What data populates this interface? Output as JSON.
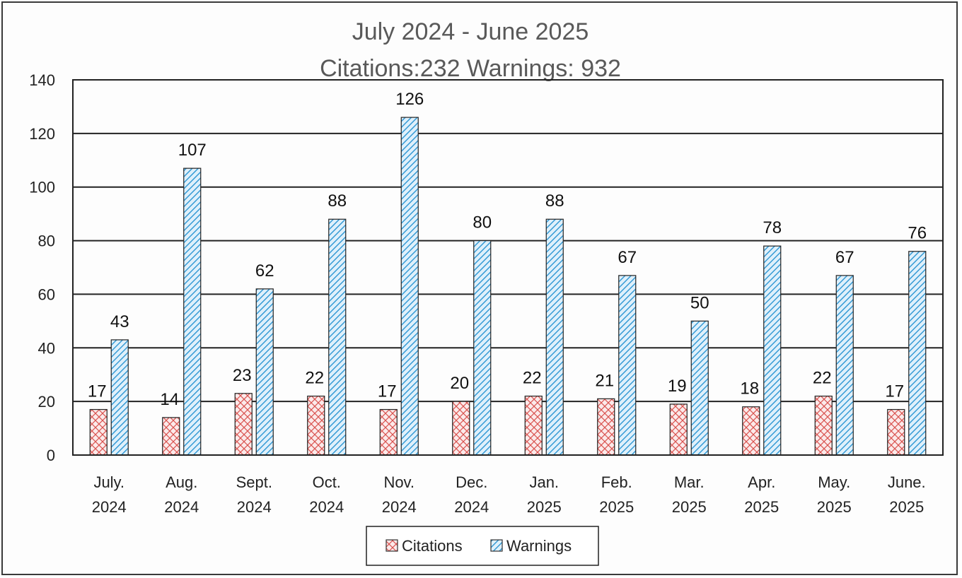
{
  "chart_data": {
    "type": "bar",
    "title": "July 2024 - June 2025",
    "subtitle": "Citations:232   Warnings: 932",
    "categories": [
      [
        "July.",
        "2024"
      ],
      [
        "Aug.",
        "2024"
      ],
      [
        "Sept.",
        "2024"
      ],
      [
        "Oct.",
        "2024"
      ],
      [
        "Nov.",
        "2024"
      ],
      [
        "Dec.",
        "2024"
      ],
      [
        "Jan.",
        "2025"
      ],
      [
        "Feb.",
        "2025"
      ],
      [
        "Mar.",
        "2025"
      ],
      [
        "Apr.",
        "2025"
      ],
      [
        "May.",
        "2025"
      ],
      [
        "June.",
        "2025"
      ]
    ],
    "series": [
      {
        "name": "Citations",
        "values": [
          17,
          14,
          23,
          22,
          17,
          20,
          22,
          21,
          19,
          18,
          22,
          17
        ],
        "color": "#e06060"
      },
      {
        "name": "Warnings",
        "values": [
          43,
          107,
          62,
          88,
          126,
          80,
          88,
          67,
          50,
          78,
          67,
          76
        ],
        "color": "#1e8fd0"
      }
    ],
    "ylim": [
      0,
      140
    ],
    "yticks": [
      "0",
      "20",
      "40",
      "60",
      "80",
      "100",
      "120",
      "140"
    ],
    "grid": true,
    "legend_position": "bottom-center",
    "xlabel": "",
    "ylabel": ""
  }
}
